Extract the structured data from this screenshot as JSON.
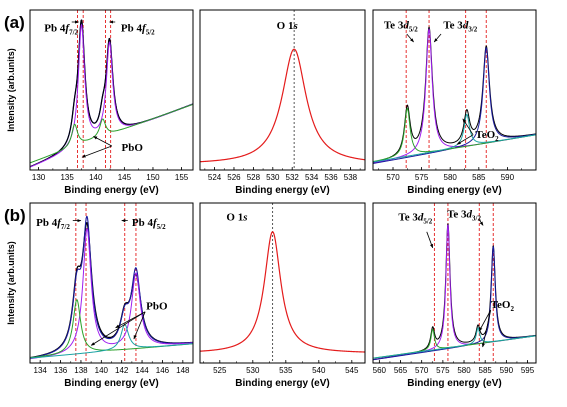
{
  "chart_data": [
    {
      "type": "line",
      "panel": "(a)",
      "row": 0,
      "col": 0,
      "show_ylabel": true,
      "xlabel": "Binding energy (eV)",
      "ylabel": "Intensity (arb.units)",
      "xlim": [
        128.5,
        157
      ],
      "xticks": [
        130,
        135,
        140,
        145,
        150,
        155
      ],
      "ylim": [
        0,
        1
      ],
      "annotations": [
        {
          "parts": [
            [
              "Pb 4",
              ""
            ],
            [
              "f",
              "it"
            ],
            [
              "7/2",
              "sub"
            ]
          ],
          "x": 131,
          "y": 0.865
        },
        {
          "parts": [
            [
              "Pb 4",
              ""
            ],
            [
              "f",
              "it"
            ],
            [
              "5/2",
              "sub"
            ]
          ],
          "x": 144.4,
          "y": 0.865
        },
        {
          "parts": [
            [
              "PbO",
              ""
            ]
          ],
          "x": 144.5,
          "y": 0.12
        }
      ],
      "arrows": [
        [
          135.8,
          0.925,
          137.0,
          0.925
        ],
        [
          143.4,
          0.925,
          142.4,
          0.925
        ],
        [
          142.8,
          0.15,
          139.6,
          0.21
        ],
        [
          142.8,
          0.15,
          137.6,
          0.08
        ]
      ],
      "vlines": [
        {
          "x": 136.8,
          "color": "#e41c1c",
          "dash": "3,2"
        },
        {
          "x": 137.8,
          "color": "#e41c1c",
          "dash": "3,2"
        },
        {
          "x": 141.7,
          "color": "#e41c1c",
          "dash": "3,2"
        },
        {
          "x": 142.6,
          "color": "#e41c1c",
          "dash": "3,2"
        }
      ],
      "series": [
        {
          "color": "#1a1a9c",
          "width": 1.3,
          "baseline": [
            [
              129,
              0.02
            ],
            [
              157,
              0.41
            ]
          ],
          "peaks": [
            [
              137.5,
              0.76,
              0.7
            ],
            [
              142.4,
              0.58,
              0.7
            ],
            [
              136.3,
              0.13,
              0.6
            ],
            [
              141.2,
              0.1,
              0.6
            ]
          ]
        },
        {
          "color": "#000000",
          "width": 1.1,
          "baseline": [
            [
              129,
              0.02
            ],
            [
              157,
              0.41
            ]
          ],
          "peaks": [
            [
              137.5,
              0.76,
              0.7
            ],
            [
              142.4,
              0.58,
              0.7
            ],
            [
              136.3,
              0.13,
              0.6
            ],
            [
              141.2,
              0.1,
              0.6
            ]
          ]
        },
        {
          "color": "#a020f0",
          "width": 1.0,
          "baseline": [
            [
              129,
              0.02
            ],
            [
              157,
              0.41
            ]
          ],
          "peaks": [
            [
              137.5,
              0.76,
              0.66
            ],
            [
              142.4,
              0.58,
              0.66
            ]
          ]
        },
        {
          "color": "#2aa02a",
          "width": 1.0,
          "baseline": [
            [
              129,
              0.05
            ],
            [
              157,
              0.41
            ]
          ],
          "peaks": [
            [
              136.3,
              0.14,
              0.62
            ],
            [
              141.2,
              0.11,
              0.62
            ]
          ]
        }
      ]
    },
    {
      "type": "line",
      "panel": "",
      "row": 0,
      "col": 1,
      "show_ylabel": false,
      "xlabel": "Binding energy (eV)",
      "xlim": [
        522.5,
        539.5
      ],
      "xticks": [
        524,
        526,
        528,
        530,
        532,
        534,
        536,
        538
      ],
      "ylim": [
        0,
        1
      ],
      "annotations": [
        {
          "parts": [
            [
              "O 1",
              ""
            ],
            [
              "s",
              "it"
            ]
          ],
          "x": 530.4,
          "y": 0.88
        }
      ],
      "arrows": [],
      "vlines": [
        {
          "x": 532.2,
          "color": "#444444",
          "dash": "2,2"
        }
      ],
      "series": [
        {
          "color": "#e41c1c",
          "width": 1.2,
          "baseline": [
            [
              522.5,
              0.035
            ],
            [
              539.5,
              0.035
            ]
          ],
          "peaks": [
            [
              532.2,
              0.72,
              1.5
            ]
          ]
        }
      ]
    },
    {
      "type": "line",
      "panel": "",
      "row": 0,
      "col": 2,
      "show_ylabel": false,
      "xlabel": "Binding energy (eV)",
      "xlim": [
        566.5,
        595
      ],
      "xticks": [
        570,
        575,
        580,
        585,
        590
      ],
      "ylim": [
        0,
        1
      ],
      "annotations": [
        {
          "parts": [
            [
              "Te 3",
              ""
            ],
            [
              "d",
              "it"
            ],
            [
              "5/2",
              "sub"
            ]
          ],
          "x": 568.4,
          "y": 0.885
        },
        {
          "parts": [
            [
              "Te 3",
              ""
            ],
            [
              "d",
              "it"
            ],
            [
              "3/2",
              "sub"
            ]
          ],
          "x": 578.8,
          "y": 0.885
        },
        {
          "parts": [
            [
              "TeO",
              ""
            ],
            [
              "2",
              "sub"
            ]
          ],
          "x": 584.4,
          "y": 0.2
        }
      ],
      "arrows": [
        [
          572.4,
          0.85,
          573.6,
          0.8
        ],
        [
          578.4,
          0.85,
          577.2,
          0.8
        ],
        [
          584.0,
          0.22,
          581.2,
          0.16
        ],
        [
          584.0,
          0.22,
          582.2,
          0.32
        ]
      ],
      "vlines": [
        {
          "x": 572.3,
          "color": "#e41c1c",
          "dash": "3,2"
        },
        {
          "x": 576.3,
          "color": "#e41c1c",
          "dash": "3,2"
        },
        {
          "x": 582.7,
          "color": "#e41c1c",
          "dash": "3,2"
        },
        {
          "x": 586.3,
          "color": "#e41c1c",
          "dash": "3,2"
        }
      ],
      "series": [
        {
          "color": "#000000",
          "width": 1.0,
          "baseline": [
            [
              566.5,
              0.04
            ],
            [
              595,
              0.22
            ]
          ],
          "peaks": [
            [
              576.3,
              0.78,
              0.7
            ],
            [
              586.3,
              0.6,
              0.7
            ],
            [
              572.5,
              0.3,
              0.6
            ],
            [
              582.9,
              0.2,
              0.6
            ]
          ]
        },
        {
          "color": "#a020f0",
          "width": 1.0,
          "baseline": [
            [
              566.5,
              0.04
            ],
            [
              595,
              0.22
            ]
          ],
          "peaks": [
            [
              576.3,
              0.78,
              0.66
            ]
          ]
        },
        {
          "color": "#1a1a9c",
          "width": 1.0,
          "baseline": [
            [
              566.5,
              0.04
            ],
            [
              595,
              0.22
            ]
          ],
          "peaks": [
            [
              586.3,
              0.6,
              0.66
            ]
          ]
        },
        {
          "color": "#2aa02a",
          "width": 1.0,
          "baseline": [
            [
              566.5,
              0.05
            ],
            [
              595,
              0.22
            ]
          ],
          "peaks": [
            [
              572.5,
              0.3,
              0.58
            ]
          ]
        },
        {
          "color": "#1aa3a3",
          "width": 1.0,
          "baseline": [
            [
              566.5,
              0.05
            ],
            [
              595,
              0.22
            ]
          ],
          "peaks": [
            [
              582.9,
              0.2,
              0.58
            ]
          ]
        }
      ]
    },
    {
      "type": "line",
      "panel": "(b)",
      "row": 1,
      "col": 0,
      "show_ylabel": true,
      "xlabel": "Binding energy (eV)",
      "ylabel": "Intensity (arb.units)",
      "xlim": [
        133,
        149
      ],
      "xticks": [
        134,
        136,
        138,
        140,
        142,
        144,
        146,
        148
      ],
      "ylim": [
        0,
        1
      ],
      "annotations": [
        {
          "parts": [
            [
              "Pb 4",
              ""
            ],
            [
              "f",
              "it"
            ],
            [
              "7/2",
              "sub"
            ]
          ],
          "x": 133.6,
          "y": 0.855
        },
        {
          "parts": [
            [
              "Pb 4",
              ""
            ],
            [
              "f",
              "it"
            ],
            [
              "5/2",
              "sub"
            ]
          ],
          "x": 143.0,
          "y": 0.855
        },
        {
          "parts": [
            [
              "PbO",
              ""
            ]
          ],
          "x": 144.4,
          "y": 0.335
        }
      ],
      "arrows": [
        [
          137.2,
          0.89,
          138.0,
          0.89
        ],
        [
          142.6,
          0.89,
          142.0,
          0.89
        ],
        [
          144.3,
          0.32,
          141.4,
          0.22
        ],
        [
          144.3,
          0.32,
          139.0,
          0.11
        ],
        [
          144.3,
          0.32,
          143.2,
          0.15
        ]
      ],
      "vlines": [
        {
          "x": 137.5,
          "color": "#e41c1c",
          "dash": "3,2"
        },
        {
          "x": 138.5,
          "color": "#e41c1c",
          "dash": "3,2"
        },
        {
          "x": 142.3,
          "color": "#e41c1c",
          "dash": "3,2"
        },
        {
          "x": 143.4,
          "color": "#e41c1c",
          "dash": "3,2"
        }
      ],
      "series": [
        {
          "color": "#000000",
          "width": 1.3,
          "baseline": [
            [
              133,
              0.02
            ],
            [
              149,
              0.12
            ]
          ],
          "peaks": [
            [
              138.6,
              0.74,
              0.55
            ],
            [
              143.4,
              0.43,
              0.6
            ],
            [
              137.6,
              0.36,
              0.5
            ],
            [
              142.3,
              0.17,
              0.5
            ]
          ]
        },
        {
          "color": "#1a1a9c",
          "width": 1.1,
          "baseline": [
            [
              133,
              0.02
            ],
            [
              149,
              0.12
            ]
          ],
          "peaks": [
            [
              138.6,
              0.78,
              0.5
            ],
            [
              143.4,
              0.47,
              0.55
            ],
            [
              137.6,
              0.36,
              0.5
            ],
            [
              142.3,
              0.17,
              0.5
            ]
          ]
        },
        {
          "color": "#a020f0",
          "width": 1.0,
          "baseline": [
            [
              133,
              0.02
            ],
            [
              149,
              0.12
            ]
          ],
          "peaks": [
            [
              138.6,
              0.78,
              0.48
            ],
            [
              143.4,
              0.47,
              0.52
            ]
          ]
        },
        {
          "color": "#2aa02a",
          "width": 1.0,
          "baseline": [
            [
              133,
              0.03
            ],
            [
              149,
              0.12
            ]
          ],
          "peaks": [
            [
              137.6,
              0.34,
              0.45
            ]
          ]
        },
        {
          "color": "#1aa3a3",
          "width": 1.0,
          "baseline": [
            [
              133,
              0.03
            ],
            [
              149,
              0.12
            ]
          ],
          "peaks": [
            [
              142.3,
              0.16,
              0.45
            ]
          ]
        }
      ]
    },
    {
      "type": "line",
      "panel": "",
      "row": 1,
      "col": 1,
      "show_ylabel": false,
      "xlabel": "Binding energy (eV)",
      "xlim": [
        522,
        547
      ],
      "xticks": [
        525,
        530,
        535,
        540,
        545
      ],
      "ylim": [
        0,
        1
      ],
      "annotations": [
        {
          "parts": [
            [
              "O 1",
              ""
            ],
            [
              "s",
              "it"
            ]
          ],
          "x": 526.0,
          "y": 0.89
        }
      ],
      "arrows": [],
      "vlines": [
        {
          "x": 533.0,
          "color": "#444444",
          "dash": "2,2"
        }
      ],
      "series": [
        {
          "color": "#e41c1c",
          "width": 1.2,
          "baseline": [
            [
              522,
              0.06
            ],
            [
              547,
              0.06
            ]
          ],
          "peaks": [
            [
              533.0,
              0.76,
              1.5
            ]
          ]
        }
      ]
    },
    {
      "type": "line",
      "panel": "",
      "row": 1,
      "col": 2,
      "show_ylabel": false,
      "xlabel": "Binding energy (eV)",
      "xlim": [
        558.5,
        597
      ],
      "xticks": [
        560,
        565,
        570,
        575,
        580,
        585,
        590,
        595
      ],
      "ylim": [
        0,
        1
      ],
      "annotations": [
        {
          "parts": [
            [
              "Te 3",
              ""
            ],
            [
              "d",
              "it"
            ],
            [
              "5/2",
              "sub"
            ]
          ],
          "x": 564.5,
          "y": 0.89
        },
        {
          "parts": [
            [
              "Te 3",
              ""
            ],
            [
              "d",
              "it"
            ],
            [
              "3/2",
              "sub"
            ]
          ],
          "x": 576.0,
          "y": 0.91
        },
        {
          "parts": [
            [
              "TeO",
              ""
            ],
            [
              "2",
              "sub"
            ]
          ],
          "x": 586.3,
          "y": 0.345
        }
      ],
      "arrows": [
        [
          571.2,
          0.82,
          572.6,
          0.72
        ],
        [
          583.5,
          0.9,
          584.5,
          0.86
        ],
        [
          586.3,
          0.33,
          583.6,
          0.2
        ],
        [
          586.3,
          0.33,
          584.4,
          0.1
        ]
      ],
      "vlines": [
        {
          "x": 573.0,
          "color": "#e41c1c",
          "dash": "3,2"
        },
        {
          "x": 576.2,
          "color": "#e41c1c",
          "dash": "3,2"
        },
        {
          "x": 583.6,
          "color": "#e41c1c",
          "dash": "3,2"
        },
        {
          "x": 586.9,
          "color": "#e41c1c",
          "dash": "3,2"
        }
      ],
      "series": [
        {
          "color": "#000000",
          "width": 1.0,
          "baseline": [
            [
              558.5,
              0.02
            ],
            [
              597,
              0.17
            ]
          ],
          "peaks": [
            [
              576.2,
              0.78,
              0.6
            ],
            [
              586.9,
              0.6,
              0.6
            ],
            [
              572.6,
              0.13,
              0.55
            ],
            [
              583.3,
              0.1,
              0.55
            ]
          ]
        },
        {
          "color": "#a020f0",
          "width": 1.0,
          "baseline": [
            [
              558.5,
              0.02
            ],
            [
              597,
              0.17
            ]
          ],
          "peaks": [
            [
              576.2,
              0.78,
              0.55
            ]
          ]
        },
        {
          "color": "#1a1a9c",
          "width": 1.0,
          "baseline": [
            [
              558.5,
              0.02
            ],
            [
              597,
              0.17
            ]
          ],
          "peaks": [
            [
              586.9,
              0.6,
              0.55
            ]
          ]
        },
        {
          "color": "#2aa02a",
          "width": 1.0,
          "baseline": [
            [
              558.5,
              0.03
            ],
            [
              597,
              0.17
            ]
          ],
          "peaks": [
            [
              572.6,
              0.13,
              0.5
            ]
          ]
        },
        {
          "color": "#1aa3a3",
          "width": 1.0,
          "baseline": [
            [
              558.5,
              0.03
            ],
            [
              597,
              0.17
            ]
          ],
          "peaks": [
            [
              583.3,
              0.1,
              0.5
            ]
          ]
        }
      ]
    }
  ]
}
